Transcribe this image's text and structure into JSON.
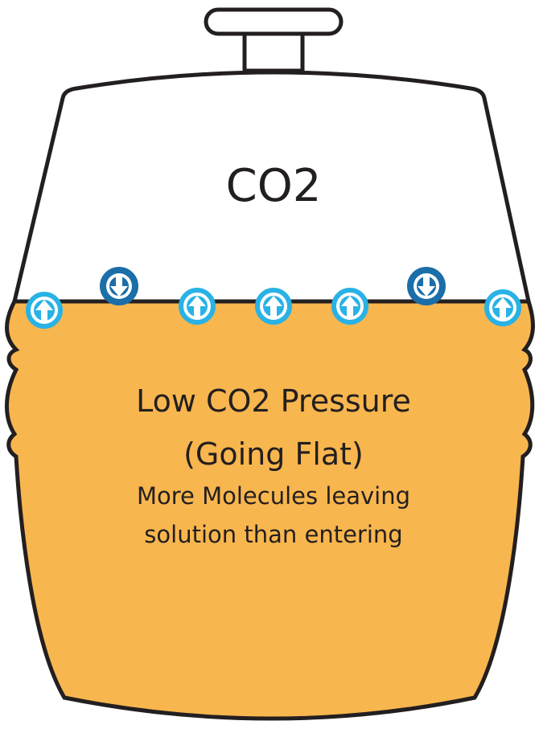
{
  "top_label": "CO2",
  "liquid": {
    "title_lines": [
      "Low CO2 Pressure",
      "(Going Flat)"
    ],
    "caption_lines": [
      "More Molecules leaving",
      "solution than entering"
    ]
  }
}
